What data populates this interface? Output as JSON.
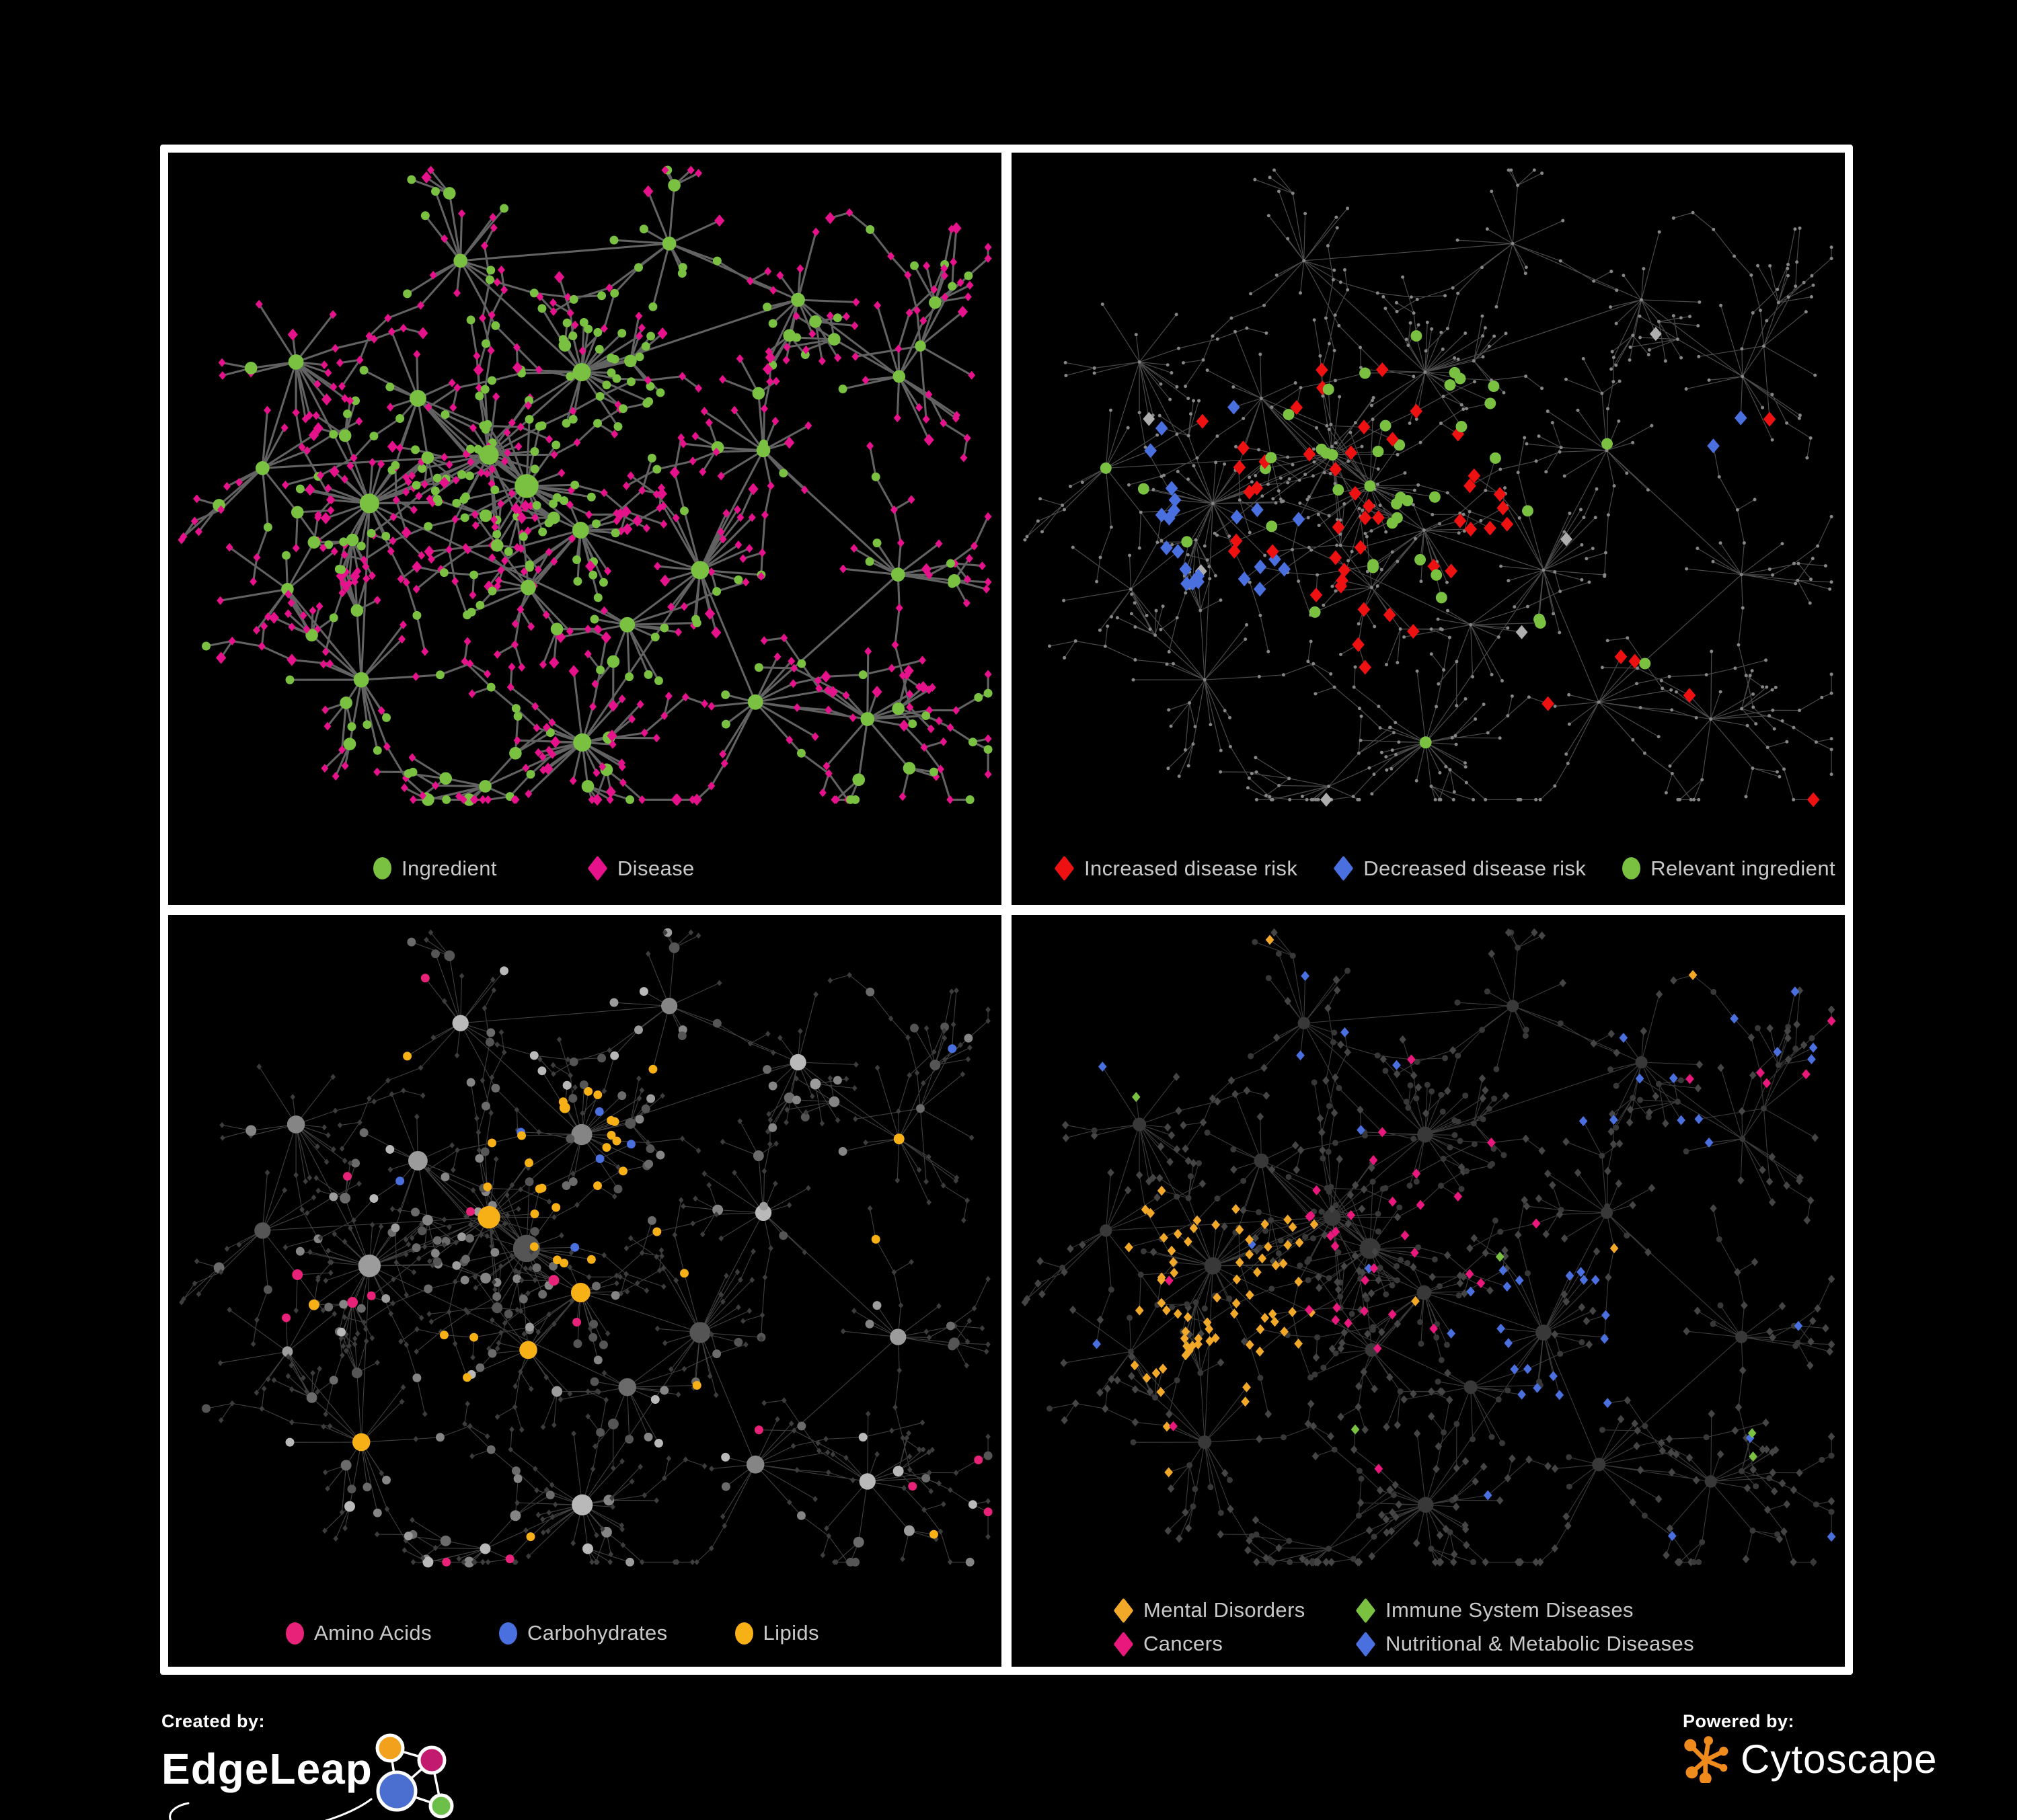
{
  "figure": {
    "background": "#000000",
    "frame_color": "#ffffff",
    "legend_text_color": "#c9c9c9"
  },
  "panels": [
    {
      "id": "ingredient-disease-network",
      "legend": [
        {
          "shape": "circle",
          "color": "#7ac142",
          "label": "Ingredient"
        },
        {
          "shape": "diamond",
          "color": "#e6128c",
          "label": "Disease"
        }
      ],
      "style": {
        "mode": "binary",
        "edge_color": "#6d6d6d",
        "edge_width": 3.1,
        "edge_opacity": 0.9,
        "circle_color": "#7ac142",
        "diamond_color": "#e6128c"
      }
    },
    {
      "id": "disease-risk-network",
      "legend": [
        {
          "shape": "diamond",
          "color": "#ee1111",
          "label": "Increased disease risk"
        },
        {
          "shape": "diamond",
          "color": "#4a70e0",
          "label": "Decreased disease risk"
        },
        {
          "shape": "circle",
          "color": "#7ac142",
          "label": "Relevant ingredient"
        }
      ],
      "style": {
        "mode": "risk",
        "edge_color": "#5c5c5c",
        "edge_width": 1.2,
        "edge_opacity": 0.8,
        "base_color": "#868686",
        "increased_color": "#ee1111",
        "decreased_color": "#4a70e0",
        "neutral_color": "#aeaeae",
        "ingredient_color": "#7ac142"
      }
    },
    {
      "id": "nutrient-class-network",
      "legend": [
        {
          "shape": "circle",
          "color": "#e82179",
          "label": "Amino Acids"
        },
        {
          "shape": "circle",
          "color": "#4a70e0",
          "label": "Carbohydrates"
        },
        {
          "shape": "circle",
          "color": "#f7b016",
          "label": "Lipids"
        }
      ],
      "style": {
        "mode": "nutrients",
        "edge_color": "#565656",
        "edge_width": 1.1,
        "edge_opacity": 0.75,
        "disease_color": "#3d3d3d",
        "ingredient_grays": [
          "#b9b9b9",
          "#9c9c9c",
          "#858585",
          "#6b6b6b",
          "#555555"
        ],
        "amino_color": "#e82179",
        "carb_color": "#4a70e0",
        "lipid_color": "#f7b016"
      }
    },
    {
      "id": "disease-category-network",
      "legend": [
        {
          "shape": "diamond",
          "color": "#f2a829",
          "label": "Mental Disorders"
        },
        {
          "shape": "diamond",
          "color": "#7ac142",
          "label": "Immune System Diseases"
        },
        {
          "shape": "diamond",
          "color": "#e8187c",
          "label": "Cancers"
        },
        {
          "shape": "diamond",
          "color": "#4a70e0",
          "label": "Nutritional & Metabolic Diseases"
        }
      ],
      "legend_order_note": "row-major: Mental, Immune / Cancers, Nutritional",
      "style": {
        "mode": "categories",
        "edge_color": "#4f4f4f",
        "edge_width": 1.1,
        "edge_opacity": 0.75,
        "ingredient_color": "#383838",
        "other_disease_color": "#454545",
        "mental_color": "#f2a829",
        "immune_color": "#7ac142",
        "cancer_color": "#e8187c",
        "nutritional_color": "#4a70e0"
      }
    }
  ],
  "footer": {
    "created_by": "Created by:",
    "created_brand": "EdgeLeap",
    "powered_by": "Powered by:",
    "powered_brand": "Cytoscape",
    "edgeleap_colors": {
      "orange": "#f1a11b",
      "magenta": "#c21a6e",
      "blue": "#4a6fd0",
      "green": "#6cc04a"
    },
    "cytoscape_orange": "#ef8b1d"
  },
  "network": {
    "seed": 1337,
    "viewbox_width": 1245,
    "viewbox_height": 1118
  }
}
